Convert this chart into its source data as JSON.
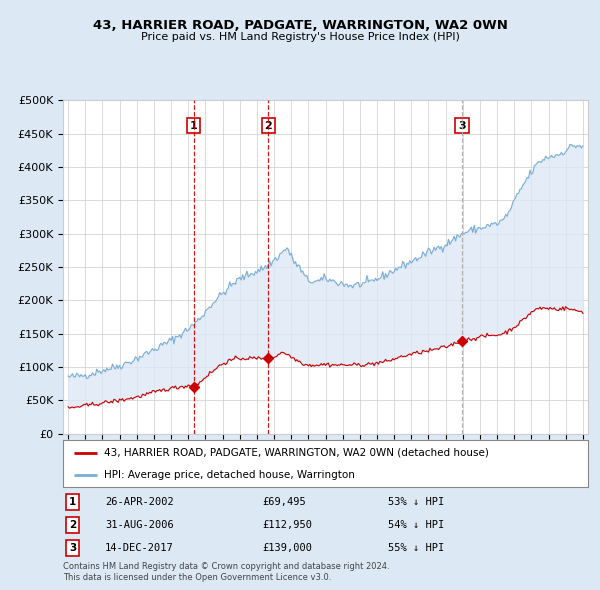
{
  "title": "43, HARRIER ROAD, PADGATE, WARRINGTON, WA2 0WN",
  "subtitle": "Price paid vs. HM Land Registry's House Price Index (HPI)",
  "legend_label_red": "43, HARRIER ROAD, PADGATE, WARRINGTON, WA2 0WN (detached house)",
  "legend_label_blue": "HPI: Average price, detached house, Warrington",
  "footer1": "Contains HM Land Registry data © Crown copyright and database right 2024.",
  "footer2": "This data is licensed under the Open Government Licence v3.0.",
  "transactions": [
    {
      "num": 1,
      "date": "26-APR-2002",
      "price": "£69,495",
      "pct": "53% ↓ HPI",
      "year": 2002.32,
      "price_val": 69495,
      "vline_style": "red_dash"
    },
    {
      "num": 2,
      "date": "31-AUG-2006",
      "price": "£112,950",
      "pct": "54% ↓ HPI",
      "year": 2006.67,
      "price_val": 112950,
      "vline_style": "red_dash"
    },
    {
      "num": 3,
      "date": "14-DEC-2017",
      "price": "£139,000",
      "pct": "55% ↓ HPI",
      "year": 2017.96,
      "price_val": 139000,
      "vline_style": "gray_dash"
    }
  ],
  "ylim": [
    0,
    500000
  ],
  "yticks": [
    0,
    50000,
    100000,
    150000,
    200000,
    250000,
    300000,
    350000,
    400000,
    450000,
    500000
  ],
  "xlim_start": 1994.7,
  "xlim_end": 2025.3,
  "bg_color": "#dce9f5",
  "plot_bg": "#ffffff",
  "fill_color": "#dde8f5",
  "red_color": "#cc0000",
  "blue_color": "#7aadd4",
  "gray_dash_color": "#aaaaaa"
}
